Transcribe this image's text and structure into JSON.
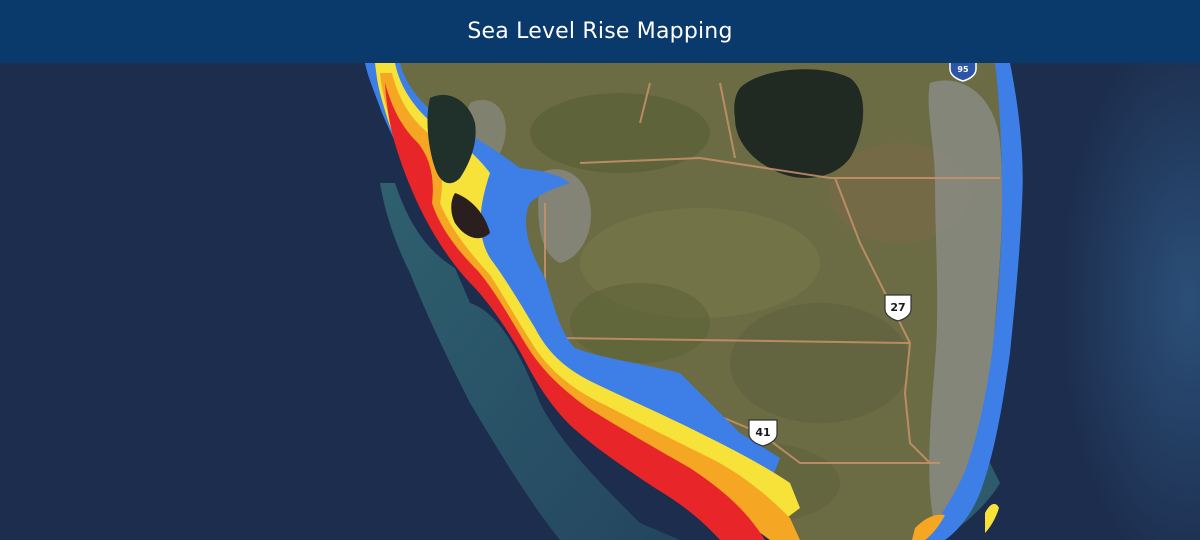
{
  "header": {
    "title": "Sea Level Rise Mapping"
  },
  "map": {
    "highway_shields": [
      {
        "label": "27"
      },
      {
        "label": "41"
      },
      {
        "label": "95"
      }
    ],
    "inundation_colors": {
      "low": "#e8262a",
      "mid_low": "#f5a623",
      "mid_high": "#f7e23a",
      "high": "#3d7fe6"
    },
    "ocean_color": "#1c2d4d",
    "land_color": "#6f7046"
  }
}
